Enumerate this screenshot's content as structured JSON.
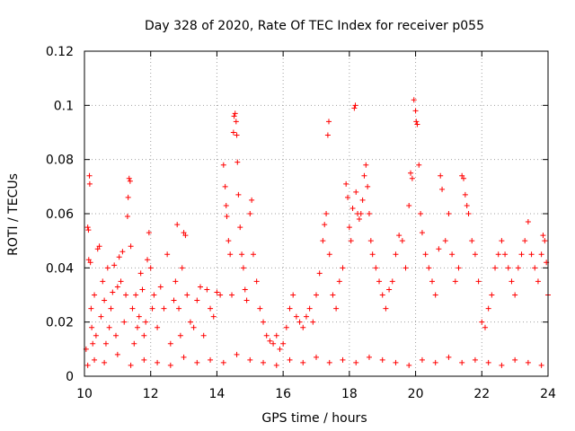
{
  "chart_data": {
    "type": "scatter",
    "title": "Day 328 of 2020, Rate Of TEC Index for receiver p055",
    "xlabel": "GPS time / hours",
    "ylabel": "ROTI / TECUs",
    "xlim": [
      10,
      24
    ],
    "ylim": [
      0,
      0.12
    ],
    "xticks": [
      10,
      12,
      14,
      16,
      18,
      20,
      22,
      24
    ],
    "xtick_labels": [
      "10",
      "12",
      "14",
      "16",
      "18",
      "20",
      "22",
      "24"
    ],
    "yticks": [
      0,
      0.02,
      0.04,
      0.06,
      0.08,
      0.1,
      0.12
    ],
    "ytick_labels": [
      "0",
      "0.02",
      "0.04",
      "0.06",
      "0.08",
      "0.1",
      "0.12"
    ],
    "grid": true,
    "marker": "+",
    "color": "#ff0000",
    "series": [
      {
        "name": "ROTI",
        "points": [
          [
            10.05,
            0.01
          ],
          [
            10.1,
            0.055
          ],
          [
            10.12,
            0.054
          ],
          [
            10.13,
            0.043
          ],
          [
            10.15,
            0.074
          ],
          [
            10.16,
            0.071
          ],
          [
            10.18,
            0.042
          ],
          [
            10.2,
            0.025
          ],
          [
            10.22,
            0.018
          ],
          [
            10.25,
            0.012
          ],
          [
            10.3,
            0.03
          ],
          [
            10.35,
            0.015
          ],
          [
            10.4,
            0.047
          ],
          [
            10.45,
            0.048
          ],
          [
            10.5,
            0.022
          ],
          [
            10.55,
            0.035
          ],
          [
            10.6,
            0.028
          ],
          [
            10.65,
            0.012
          ],
          [
            10.7,
            0.04
          ],
          [
            10.75,
            0.018
          ],
          [
            10.8,
            0.025
          ],
          [
            10.85,
            0.031
          ],
          [
            10.9,
            0.041
          ],
          [
            10.95,
            0.015
          ],
          [
            11.0,
            0.033
          ],
          [
            11.05,
            0.044
          ],
          [
            11.1,
            0.035
          ],
          [
            11.15,
            0.046
          ],
          [
            11.2,
            0.02
          ],
          [
            11.25,
            0.03
          ],
          [
            11.3,
            0.059
          ],
          [
            11.32,
            0.066
          ],
          [
            11.35,
            0.073
          ],
          [
            11.38,
            0.072
          ],
          [
            11.4,
            0.048
          ],
          [
            11.45,
            0.025
          ],
          [
            11.5,
            0.012
          ],
          [
            11.55,
            0.03
          ],
          [
            11.6,
            0.018
          ],
          [
            11.65,
            0.022
          ],
          [
            11.7,
            0.038
          ],
          [
            11.75,
            0.032
          ],
          [
            11.8,
            0.015
          ],
          [
            11.85,
            0.02
          ],
          [
            11.9,
            0.043
          ],
          [
            11.95,
            0.053
          ],
          [
            12.0,
            0.04
          ],
          [
            12.05,
            0.025
          ],
          [
            12.1,
            0.03
          ],
          [
            12.2,
            0.018
          ],
          [
            12.3,
            0.033
          ],
          [
            12.4,
            0.025
          ],
          [
            12.5,
            0.045
          ],
          [
            12.6,
            0.012
          ],
          [
            12.7,
            0.028
          ],
          [
            12.75,
            0.035
          ],
          [
            12.8,
            0.056
          ],
          [
            12.85,
            0.025
          ],
          [
            12.9,
            0.015
          ],
          [
            12.95,
            0.04
          ],
          [
            13.0,
            0.053
          ],
          [
            13.05,
            0.052
          ],
          [
            13.1,
            0.03
          ],
          [
            13.2,
            0.02
          ],
          [
            13.3,
            0.018
          ],
          [
            13.4,
            0.028
          ],
          [
            13.5,
            0.033
          ],
          [
            13.6,
            0.015
          ],
          [
            13.7,
            0.032
          ],
          [
            13.8,
            0.025
          ],
          [
            13.9,
            0.022
          ],
          [
            14.0,
            0.031
          ],
          [
            14.1,
            0.03
          ],
          [
            14.2,
            0.078
          ],
          [
            14.25,
            0.07
          ],
          [
            14.28,
            0.063
          ],
          [
            14.3,
            0.059
          ],
          [
            14.35,
            0.05
          ],
          [
            14.4,
            0.045
          ],
          [
            14.45,
            0.03
          ],
          [
            14.5,
            0.09
          ],
          [
            14.52,
            0.096
          ],
          [
            14.55,
            0.097
          ],
          [
            14.58,
            0.094
          ],
          [
            14.6,
            0.089
          ],
          [
            14.62,
            0.079
          ],
          [
            14.65,
            0.067
          ],
          [
            14.7,
            0.055
          ],
          [
            14.75,
            0.045
          ],
          [
            14.8,
            0.04
          ],
          [
            14.85,
            0.032
          ],
          [
            14.9,
            0.028
          ],
          [
            15.0,
            0.06
          ],
          [
            15.05,
            0.065
          ],
          [
            15.1,
            0.045
          ],
          [
            15.2,
            0.035
          ],
          [
            15.3,
            0.025
          ],
          [
            15.4,
            0.02
          ],
          [
            15.5,
            0.015
          ],
          [
            15.6,
            0.013
          ],
          [
            15.7,
            0.012
          ],
          [
            15.8,
            0.015
          ],
          [
            15.9,
            0.01
          ],
          [
            16.0,
            0.012
          ],
          [
            16.1,
            0.018
          ],
          [
            16.2,
            0.025
          ],
          [
            16.3,
            0.03
          ],
          [
            16.4,
            0.022
          ],
          [
            16.5,
            0.02
          ],
          [
            16.6,
            0.018
          ],
          [
            16.7,
            0.022
          ],
          [
            16.8,
            0.025
          ],
          [
            16.9,
            0.02
          ],
          [
            17.0,
            0.03
          ],
          [
            17.1,
            0.038
          ],
          [
            17.2,
            0.05
          ],
          [
            17.25,
            0.056
          ],
          [
            17.3,
            0.06
          ],
          [
            17.35,
            0.089
          ],
          [
            17.38,
            0.094
          ],
          [
            17.4,
            0.045
          ],
          [
            17.5,
            0.03
          ],
          [
            17.6,
            0.025
          ],
          [
            17.7,
            0.035
          ],
          [
            17.8,
            0.04
          ],
          [
            17.9,
            0.071
          ],
          [
            17.95,
            0.066
          ],
          [
            18.0,
            0.055
          ],
          [
            18.05,
            0.05
          ],
          [
            18.1,
            0.062
          ],
          [
            18.15,
            0.099
          ],
          [
            18.18,
            0.1
          ],
          [
            18.2,
            0.068
          ],
          [
            18.25,
            0.06
          ],
          [
            18.3,
            0.058
          ],
          [
            18.35,
            0.06
          ],
          [
            18.4,
            0.065
          ],
          [
            18.45,
            0.074
          ],
          [
            18.5,
            0.078
          ],
          [
            18.55,
            0.07
          ],
          [
            18.6,
            0.06
          ],
          [
            18.65,
            0.05
          ],
          [
            18.7,
            0.045
          ],
          [
            18.8,
            0.04
          ],
          [
            18.9,
            0.035
          ],
          [
            19.0,
            0.03
          ],
          [
            19.1,
            0.025
          ],
          [
            19.2,
            0.032
          ],
          [
            19.3,
            0.035
          ],
          [
            19.4,
            0.045
          ],
          [
            19.5,
            0.052
          ],
          [
            19.6,
            0.05
          ],
          [
            19.7,
            0.04
          ],
          [
            19.8,
            0.063
          ],
          [
            19.85,
            0.075
          ],
          [
            19.9,
            0.073
          ],
          [
            19.95,
            0.102
          ],
          [
            20.0,
            0.098
          ],
          [
            20.02,
            0.094
          ],
          [
            20.05,
            0.093
          ],
          [
            20.1,
            0.078
          ],
          [
            20.15,
            0.06
          ],
          [
            20.2,
            0.053
          ],
          [
            20.3,
            0.045
          ],
          [
            20.4,
            0.04
          ],
          [
            20.5,
            0.035
          ],
          [
            20.6,
            0.03
          ],
          [
            20.7,
            0.047
          ],
          [
            20.75,
            0.074
          ],
          [
            20.8,
            0.069
          ],
          [
            20.9,
            0.05
          ],
          [
            21.0,
            0.06
          ],
          [
            21.1,
            0.045
          ],
          [
            21.2,
            0.035
          ],
          [
            21.3,
            0.04
          ],
          [
            21.4,
            0.074
          ],
          [
            21.45,
            0.073
          ],
          [
            21.5,
            0.067
          ],
          [
            21.55,
            0.063
          ],
          [
            21.6,
            0.06
          ],
          [
            21.7,
            0.05
          ],
          [
            21.8,
            0.045
          ],
          [
            21.9,
            0.035
          ],
          [
            22.0,
            0.02
          ],
          [
            22.1,
            0.018
          ],
          [
            22.2,
            0.025
          ],
          [
            22.3,
            0.03
          ],
          [
            22.4,
            0.04
          ],
          [
            22.5,
            0.045
          ],
          [
            22.6,
            0.05
          ],
          [
            22.7,
            0.045
          ],
          [
            22.8,
            0.04
          ],
          [
            22.9,
            0.035
          ],
          [
            23.0,
            0.03
          ],
          [
            23.1,
            0.04
          ],
          [
            23.2,
            0.045
          ],
          [
            23.3,
            0.05
          ],
          [
            23.4,
            0.057
          ],
          [
            23.5,
            0.045
          ],
          [
            23.6,
            0.04
          ],
          [
            23.7,
            0.035
          ],
          [
            23.8,
            0.045
          ],
          [
            23.85,
            0.052
          ],
          [
            23.9,
            0.05
          ],
          [
            23.95,
            0.042
          ],
          [
            24.0,
            0.03
          ],
          [
            10.1,
            0.004
          ],
          [
            10.3,
            0.006
          ],
          [
            10.6,
            0.005
          ],
          [
            11.0,
            0.008
          ],
          [
            11.4,
            0.004
          ],
          [
            11.8,
            0.006
          ],
          [
            12.2,
            0.005
          ],
          [
            12.6,
            0.004
          ],
          [
            13.0,
            0.007
          ],
          [
            13.4,
            0.005
          ],
          [
            13.8,
            0.006
          ],
          [
            14.2,
            0.005
          ],
          [
            14.6,
            0.008
          ],
          [
            15.0,
            0.006
          ],
          [
            15.4,
            0.005
          ],
          [
            15.8,
            0.004
          ],
          [
            16.2,
            0.006
          ],
          [
            16.6,
            0.005
          ],
          [
            17.0,
            0.007
          ],
          [
            17.4,
            0.005
          ],
          [
            17.8,
            0.006
          ],
          [
            18.2,
            0.005
          ],
          [
            18.6,
            0.007
          ],
          [
            19.0,
            0.006
          ],
          [
            19.4,
            0.005
          ],
          [
            19.8,
            0.004
          ],
          [
            20.2,
            0.006
          ],
          [
            20.6,
            0.005
          ],
          [
            21.0,
            0.007
          ],
          [
            21.4,
            0.005
          ],
          [
            21.8,
            0.006
          ],
          [
            22.2,
            0.005
          ],
          [
            22.6,
            0.004
          ],
          [
            23.0,
            0.006
          ],
          [
            23.4,
            0.005
          ],
          [
            23.8,
            0.004
          ]
        ]
      }
    ]
  }
}
